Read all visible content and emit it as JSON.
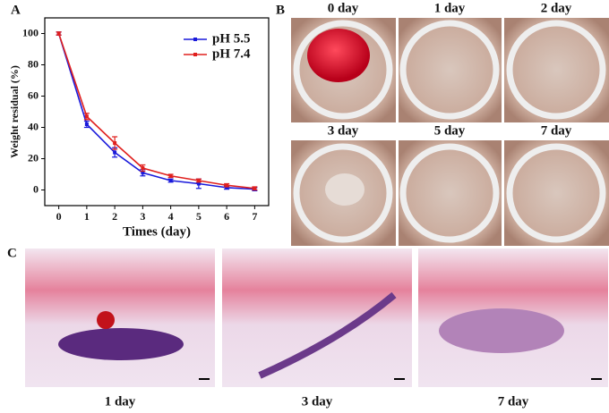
{
  "chart_data": {
    "type": "line",
    "xlabel": "Times (day)",
    "ylabel": "Weight residual (%)",
    "x": [
      0,
      1,
      2,
      3,
      4,
      5,
      6,
      7
    ],
    "series": [
      {
        "name": "pH 5.5",
        "color": "#1a1adb",
        "values": [
          100,
          42,
          24,
          11,
          6,
          4,
          1.5,
          0.5
        ],
        "errors": [
          1,
          2,
          3,
          2,
          1,
          3,
          1,
          1
        ]
      },
      {
        "name": "pH 7.4",
        "color": "#e0201e",
        "values": [
          100,
          47,
          30,
          14,
          9,
          6,
          3,
          1
        ],
        "errors": [
          1,
          2,
          4,
          2,
          1,
          1,
          1,
          1
        ]
      }
    ],
    "xlim": [
      -0.5,
      7.5
    ],
    "ylim": [
      -10,
      110
    ],
    "xticks": [
      0,
      1,
      2,
      3,
      4,
      5,
      6,
      7
    ],
    "yticks": [
      0,
      20,
      40,
      60,
      80,
      100
    ],
    "legend": "upper right",
    "grid": false
  },
  "panel_labels": [
    "A",
    "B",
    "C"
  ],
  "panel_b": {
    "labels": [
      "0 day",
      "1 day",
      "2 day",
      "3 day",
      "5 day",
      "7 day"
    ]
  },
  "panel_c": {
    "labels": [
      "1 day",
      "3 day",
      "7 day"
    ]
  }
}
